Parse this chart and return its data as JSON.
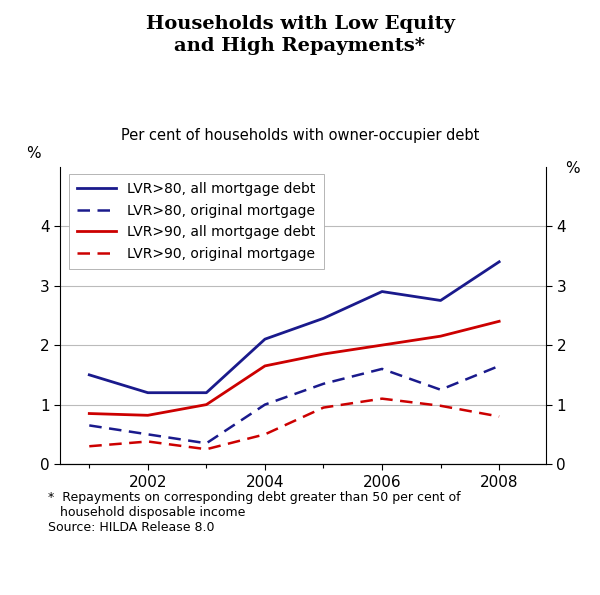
{
  "title": "Households with Low Equity\nand High Repayments*",
  "subtitle": "Per cent of households with owner-occupier debt",
  "footnote": "*  Repayments on corresponding debt greater than 50 per cent of\n   household disposable income\nSource: HILDA Release 8.0",
  "years": [
    2001,
    2002,
    2003,
    2004,
    2005,
    2006,
    2007,
    2008
  ],
  "lvr80_all": [
    1.5,
    1.2,
    1.2,
    2.1,
    2.45,
    2.9,
    2.75,
    3.4
  ],
  "lvr80_orig": [
    0.65,
    0.5,
    0.35,
    1.0,
    1.35,
    1.6,
    1.25,
    1.65
  ],
  "lvr90_all": [
    0.85,
    0.82,
    1.0,
    1.65,
    1.85,
    2.0,
    2.15,
    2.4
  ],
  "lvr90_orig": [
    0.3,
    0.38,
    0.25,
    0.5,
    0.95,
    1.1,
    0.98,
    0.8
  ],
  "color_blue": "#1a1a8c",
  "color_red": "#cc0000",
  "ylim": [
    0,
    5
  ],
  "yticks": [
    0,
    1,
    2,
    3,
    4
  ],
  "xticks": [
    2002,
    2004,
    2006,
    2008
  ],
  "xlim": [
    2000.5,
    2008.8
  ],
  "grid_color": "#bbbbbb",
  "legend_labels": [
    "LVR>80, all mortgage debt",
    "LVR>80, original mortgage",
    "LVR>90, all mortgage debt",
    "LVR>90, original mortgage"
  ]
}
